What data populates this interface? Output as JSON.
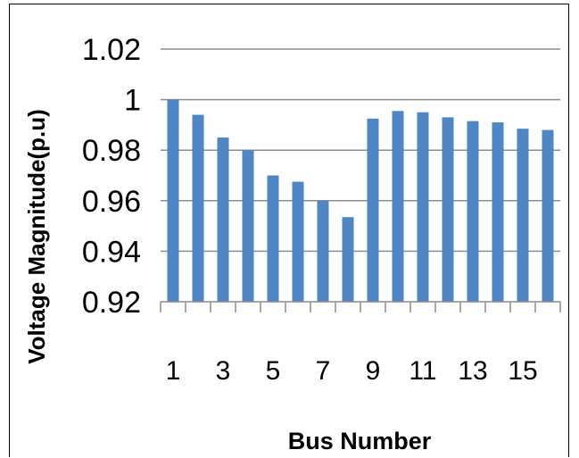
{
  "chart_data": {
    "type": "bar",
    "xlabel": "Bus Number",
    "ylabel": "Voltage Magnitude(p.u)",
    "ylim": [
      0.92,
      1.02
    ],
    "yticks": [
      "0.92",
      "0.94",
      "0.96",
      "0.98",
      "1",
      "1.02"
    ],
    "categories": [
      1,
      2,
      3,
      4,
      5,
      6,
      7,
      8,
      9,
      10,
      11,
      12,
      13,
      14,
      15,
      16
    ],
    "xtick_labels": [
      "1",
      "3",
      "5",
      "7",
      "9",
      "11",
      "13",
      "15"
    ],
    "values": [
      1.0,
      0.994,
      0.985,
      0.98,
      0.97,
      0.9675,
      0.96,
      0.9535,
      0.9925,
      0.9955,
      0.995,
      0.993,
      0.9915,
      0.991,
      0.9885,
      0.988
    ],
    "bar_color": "#4f86c6",
    "grid_color": "#8c8c8c",
    "grid": true,
    "legend": false
  }
}
